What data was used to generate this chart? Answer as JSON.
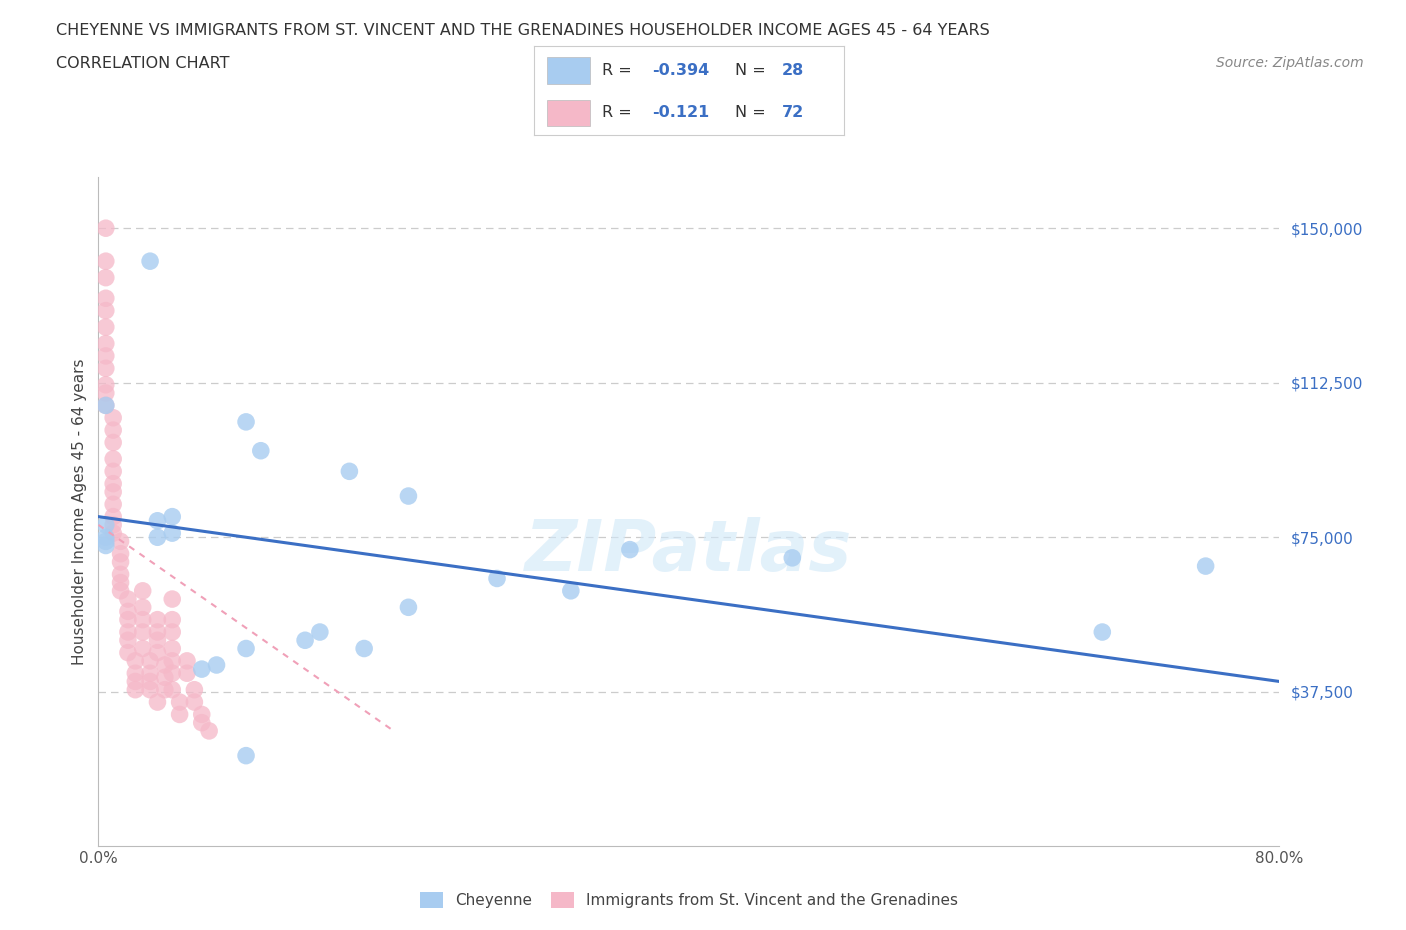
{
  "title_line1": "CHEYENNE VS IMMIGRANTS FROM ST. VINCENT AND THE GRENADINES HOUSEHOLDER INCOME AGES 45 - 64 YEARS",
  "title_line2": "CORRELATION CHART",
  "source": "Source: ZipAtlas.com",
  "ylabel": "Householder Income Ages 45 - 64 years",
  "xlim": [
    0.0,
    0.8
  ],
  "ylim": [
    0,
    162500
  ],
  "xticks": [
    0.0,
    0.1,
    0.2,
    0.3,
    0.4,
    0.5,
    0.6,
    0.7,
    0.8
  ],
  "xticklabels": [
    "0.0%",
    "",
    "",
    "",
    "",
    "",
    "",
    "",
    "80.0%"
  ],
  "ytick_vals": [
    37500,
    75000,
    112500,
    150000
  ],
  "ytick_labels": [
    "$37,500",
    "$75,000",
    "$112,500",
    "$150,000"
  ],
  "color_blue": "#A8CCF0",
  "color_pink": "#F5B8C8",
  "line_blue": "#3B6FC4",
  "line_pink": "#F0A0B8",
  "watermark": "ZIPatlas",
  "cheyenne_points": [
    [
      0.035,
      142000
    ],
    [
      0.005,
      107000
    ],
    [
      0.1,
      103000
    ],
    [
      0.11,
      96000
    ],
    [
      0.05,
      80000
    ],
    [
      0.04,
      79000
    ],
    [
      0.005,
      78000
    ],
    [
      0.05,
      76000
    ],
    [
      0.04,
      75000
    ],
    [
      0.17,
      91000
    ],
    [
      0.21,
      85000
    ],
    [
      0.005,
      75000
    ],
    [
      0.005,
      74000
    ],
    [
      0.005,
      73000
    ],
    [
      0.36,
      72000
    ],
    [
      0.47,
      70000
    ],
    [
      0.27,
      65000
    ],
    [
      0.32,
      62000
    ],
    [
      0.21,
      58000
    ],
    [
      0.15,
      52000
    ],
    [
      0.14,
      50000
    ],
    [
      0.1,
      48000
    ],
    [
      0.18,
      48000
    ],
    [
      0.08,
      44000
    ],
    [
      0.07,
      43000
    ],
    [
      0.75,
      68000
    ],
    [
      0.68,
      52000
    ],
    [
      0.1,
      22000
    ]
  ],
  "immigrant_points": [
    [
      0.005,
      150000
    ],
    [
      0.005,
      142000
    ],
    [
      0.005,
      138000
    ],
    [
      0.005,
      133000
    ],
    [
      0.005,
      130000
    ],
    [
      0.005,
      126000
    ],
    [
      0.005,
      122000
    ],
    [
      0.005,
      119000
    ],
    [
      0.005,
      116000
    ],
    [
      0.005,
      112000
    ],
    [
      0.005,
      110000
    ],
    [
      0.005,
      107000
    ],
    [
      0.01,
      104000
    ],
    [
      0.01,
      101000
    ],
    [
      0.01,
      98000
    ],
    [
      0.01,
      94000
    ],
    [
      0.01,
      91000
    ],
    [
      0.01,
      88000
    ],
    [
      0.01,
      86000
    ],
    [
      0.01,
      83000
    ],
    [
      0.01,
      80000
    ],
    [
      0.01,
      78000
    ],
    [
      0.01,
      76000
    ],
    [
      0.015,
      74000
    ],
    [
      0.015,
      71000
    ],
    [
      0.015,
      69000
    ],
    [
      0.015,
      66000
    ],
    [
      0.015,
      64000
    ],
    [
      0.015,
      62000
    ],
    [
      0.02,
      60000
    ],
    [
      0.02,
      57000
    ],
    [
      0.02,
      55000
    ],
    [
      0.02,
      52000
    ],
    [
      0.02,
      50000
    ],
    [
      0.02,
      47000
    ],
    [
      0.025,
      45000
    ],
    [
      0.025,
      42000
    ],
    [
      0.025,
      40000
    ],
    [
      0.025,
      38000
    ],
    [
      0.03,
      62000
    ],
    [
      0.03,
      58000
    ],
    [
      0.03,
      55000
    ],
    [
      0.03,
      52000
    ],
    [
      0.03,
      48000
    ],
    [
      0.035,
      45000
    ],
    [
      0.035,
      42000
    ],
    [
      0.035,
      40000
    ],
    [
      0.035,
      38000
    ],
    [
      0.04,
      35000
    ],
    [
      0.04,
      55000
    ],
    [
      0.04,
      52000
    ],
    [
      0.04,
      50000
    ],
    [
      0.04,
      47000
    ],
    [
      0.045,
      44000
    ],
    [
      0.045,
      41000
    ],
    [
      0.045,
      38000
    ],
    [
      0.05,
      60000
    ],
    [
      0.05,
      55000
    ],
    [
      0.05,
      52000
    ],
    [
      0.05,
      48000
    ],
    [
      0.05,
      45000
    ],
    [
      0.05,
      42000
    ],
    [
      0.05,
      38000
    ],
    [
      0.055,
      35000
    ],
    [
      0.055,
      32000
    ],
    [
      0.06,
      45000
    ],
    [
      0.06,
      42000
    ],
    [
      0.065,
      38000
    ],
    [
      0.065,
      35000
    ],
    [
      0.07,
      32000
    ],
    [
      0.07,
      30000
    ],
    [
      0.075,
      28000
    ]
  ],
  "blue_trendline": [
    0.0,
    80000,
    0.8,
    40000
  ],
  "pink_trendline": [
    0.0,
    78000,
    0.2,
    28000
  ]
}
